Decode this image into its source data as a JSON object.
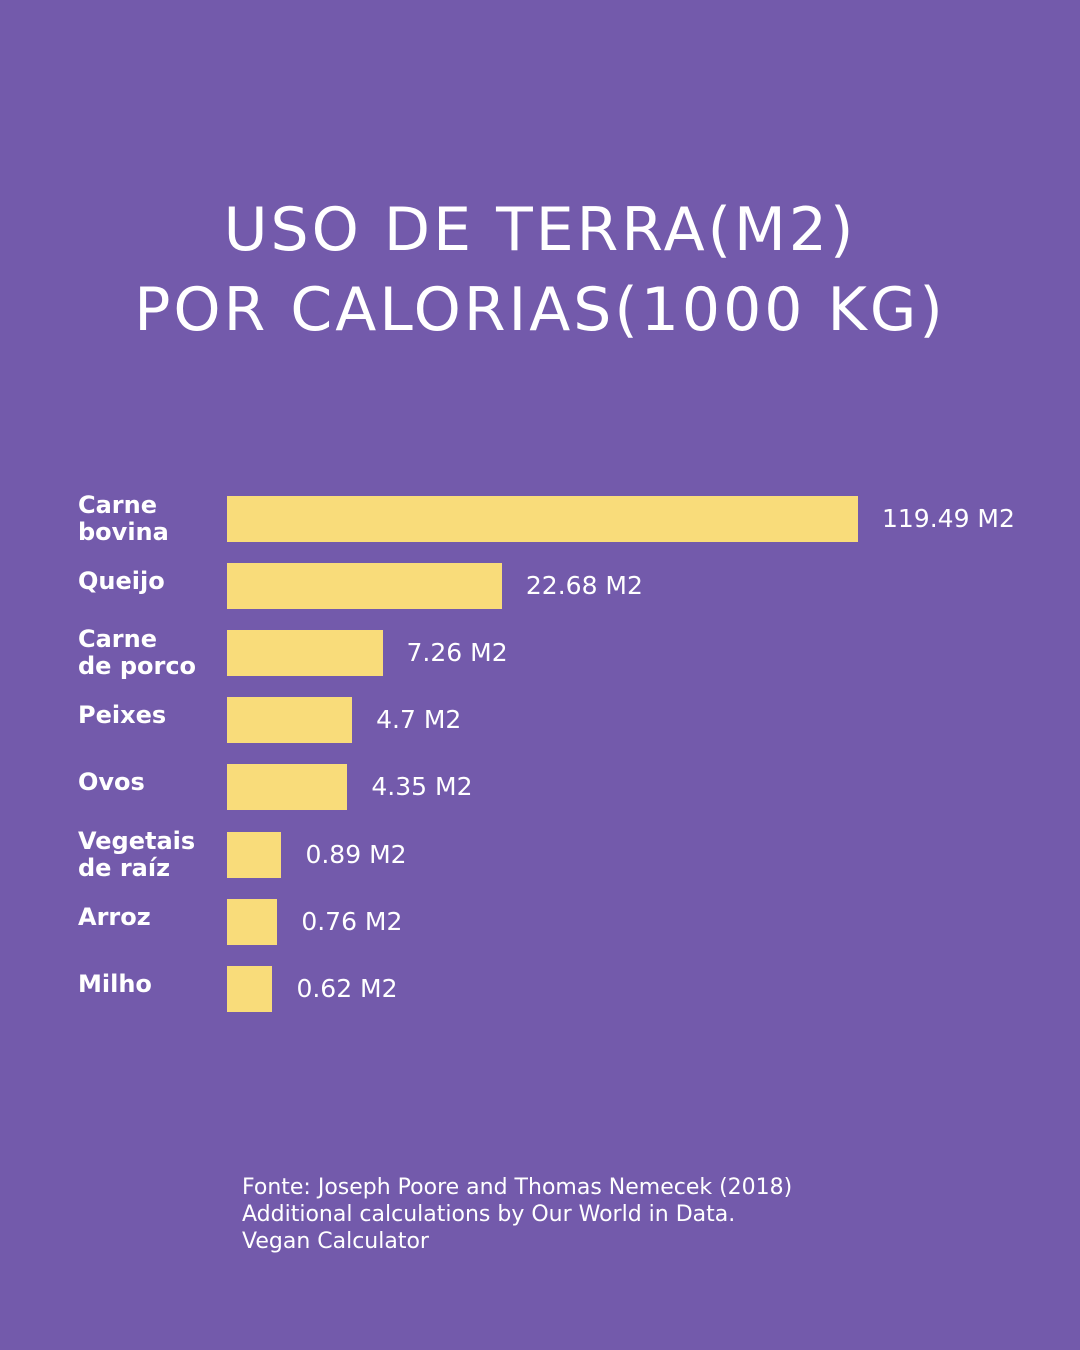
{
  "chart_data": {
    "type": "bar",
    "orientation": "horizontal",
    "title": "USO DE TERRA(M2)\nPOR CALORIAS(1000 KG)",
    "categories": [
      "Carne\nbovina",
      "Queijo",
      "Carne\nde porco",
      "Peixes",
      "Ovos",
      "Vegetais\nde raíz",
      "Arroz",
      "Milho"
    ],
    "values": [
      119.49,
      22.68,
      7.26,
      4.7,
      4.35,
      0.89,
      0.76,
      0.62
    ],
    "value_labels": [
      "119.49 M2",
      "22.68 M2",
      "7.26 M2",
      "4.7 M2",
      "4.35 M2",
      "0.89 M2",
      "0.76 M2",
      "0.62 M2"
    ],
    "color": "#f9dc7a",
    "x_scale": "sqrt",
    "source": "Fonte: Joseph Poore and Thomas Nemecek (2018)\nAdditional calculations by Our World in Data.\nVegan Calculator"
  }
}
